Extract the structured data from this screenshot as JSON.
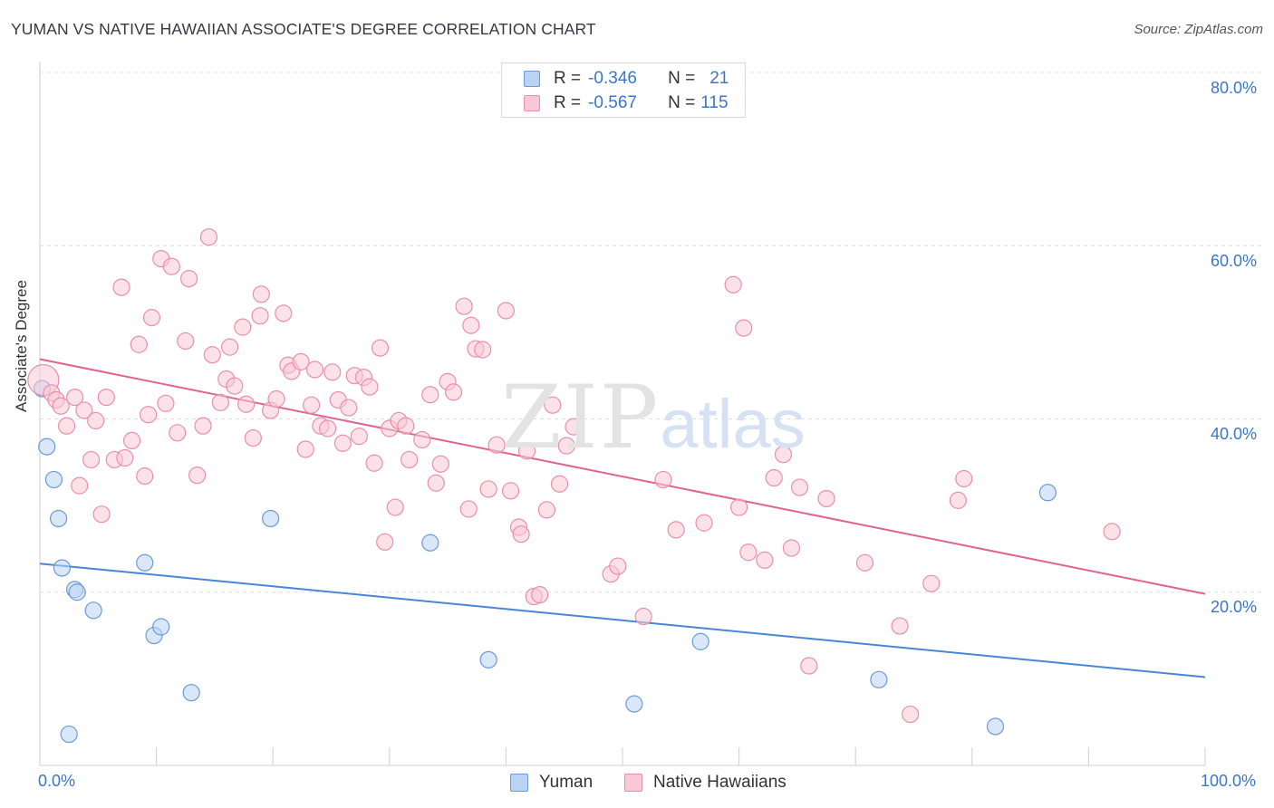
{
  "title": "YUMAN VS NATIVE HAWAIIAN ASSOCIATE'S DEGREE CORRELATION CHART",
  "source": "Source: ZipAtlas.com",
  "watermark": {
    "zip": "ZIP",
    "atlas": "atlas"
  },
  "legend": {
    "r_label": "R =",
    "n_label": "N =",
    "items": [
      {
        "name": "Yuman",
        "r": "-0.346",
        "n": "21",
        "fill": "#b9d3f3",
        "stroke": "#6a9bd8"
      },
      {
        "name": "Native Hawaiians",
        "r": "-0.567",
        "n": "115",
        "fill": "#f9c8d6",
        "stroke": "#e98fab"
      }
    ]
  },
  "chart_data": {
    "type": "scatter",
    "title": "YUMAN VS NATIVE HAWAIIAN ASSOCIATE'S DEGREE CORRELATION CHART",
    "xlabel": "",
    "ylabel": "Associate's Degree",
    "xlim": [
      0,
      100
    ],
    "ylim": [
      0,
      80
    ],
    "x_ticks": [
      "0.0%",
      "100.0%"
    ],
    "y_ticks": [
      "20.0%",
      "40.0%",
      "60.0%",
      "80.0%"
    ],
    "y_tick_values": [
      20,
      40,
      60,
      80
    ],
    "grid": true,
    "legend_position": "top-center",
    "series": [
      {
        "name": "Yuman",
        "color": "#4a86d6",
        "fill": "#b9d3f3",
        "trend": {
          "x": [
            0,
            100
          ],
          "y": [
            23.3,
            10.2
          ]
        },
        "points": [
          [
            0.2,
            43.5
          ],
          [
            0.6,
            36.8
          ],
          [
            1.2,
            33.0
          ],
          [
            1.6,
            28.5
          ],
          [
            1.9,
            22.8
          ],
          [
            3.0,
            20.3
          ],
          [
            3.2,
            20.0
          ],
          [
            4.6,
            17.9
          ],
          [
            9.0,
            23.4
          ],
          [
            9.8,
            15.0
          ],
          [
            10.4,
            16.0
          ],
          [
            13.0,
            8.4
          ],
          [
            19.8,
            28.5
          ],
          [
            33.5,
            25.7
          ],
          [
            38.5,
            12.2
          ],
          [
            51.0,
            7.1
          ],
          [
            56.7,
            14.3
          ],
          [
            72.0,
            9.9
          ],
          [
            82.0,
            4.5
          ],
          [
            86.5,
            31.5
          ],
          [
            2.5,
            3.6
          ]
        ]
      },
      {
        "name": "Native Hawaiians",
        "color": "#e0648f",
        "fill": "#f9c8d6",
        "trend": {
          "x": [
            0,
            100
          ],
          "y": [
            46.9,
            19.8
          ]
        },
        "points": [
          [
            0.3,
            44.5
          ],
          [
            1.0,
            43.0
          ],
          [
            1.4,
            42.2
          ],
          [
            1.8,
            41.5
          ],
          [
            2.3,
            39.2
          ],
          [
            3.0,
            42.5
          ],
          [
            3.4,
            32.3
          ],
          [
            3.8,
            41.0
          ],
          [
            4.4,
            35.3
          ],
          [
            4.8,
            39.8
          ],
          [
            5.3,
            29.0
          ],
          [
            5.7,
            42.5
          ],
          [
            6.4,
            35.3
          ],
          [
            7.0,
            55.2
          ],
          [
            7.3,
            35.5
          ],
          [
            7.9,
            37.5
          ],
          [
            8.5,
            48.6
          ],
          [
            9.0,
            33.4
          ],
          [
            9.3,
            40.5
          ],
          [
            9.6,
            51.7
          ],
          [
            10.4,
            58.5
          ],
          [
            10.8,
            41.8
          ],
          [
            11.3,
            57.6
          ],
          [
            11.8,
            38.4
          ],
          [
            12.5,
            49.0
          ],
          [
            12.8,
            56.2
          ],
          [
            13.5,
            33.5
          ],
          [
            14.0,
            39.2
          ],
          [
            14.5,
            61.0
          ],
          [
            14.8,
            47.4
          ],
          [
            15.5,
            41.9
          ],
          [
            16.0,
            44.6
          ],
          [
            16.3,
            48.3
          ],
          [
            16.7,
            43.8
          ],
          [
            17.4,
            50.6
          ],
          [
            17.7,
            41.7
          ],
          [
            18.3,
            37.8
          ],
          [
            18.9,
            51.9
          ],
          [
            19.0,
            54.4
          ],
          [
            19.8,
            41.0
          ],
          [
            20.3,
            42.3
          ],
          [
            20.9,
            52.2
          ],
          [
            21.3,
            46.2
          ],
          [
            21.6,
            45.5
          ],
          [
            22.4,
            46.6
          ],
          [
            22.8,
            36.5
          ],
          [
            23.3,
            41.6
          ],
          [
            23.6,
            45.7
          ],
          [
            24.1,
            39.2
          ],
          [
            24.7,
            38.9
          ],
          [
            25.1,
            45.4
          ],
          [
            25.6,
            42.2
          ],
          [
            26.0,
            37.2
          ],
          [
            26.5,
            41.3
          ],
          [
            27.0,
            45.0
          ],
          [
            27.4,
            38.0
          ],
          [
            27.8,
            44.8
          ],
          [
            28.3,
            43.7
          ],
          [
            28.7,
            34.9
          ],
          [
            29.2,
            48.2
          ],
          [
            29.6,
            25.8
          ],
          [
            30.0,
            38.9
          ],
          [
            30.5,
            29.8
          ],
          [
            30.8,
            39.8
          ],
          [
            31.4,
            39.2
          ],
          [
            31.7,
            35.3
          ],
          [
            32.8,
            37.6
          ],
          [
            33.5,
            42.8
          ],
          [
            34.0,
            32.6
          ],
          [
            34.4,
            34.8
          ],
          [
            35.0,
            44.3
          ],
          [
            35.5,
            43.1
          ],
          [
            36.4,
            53.0
          ],
          [
            36.8,
            29.6
          ],
          [
            37.0,
            50.8
          ],
          [
            37.4,
            48.1
          ],
          [
            38.0,
            48.0
          ],
          [
            38.5,
            31.9
          ],
          [
            39.2,
            37.0
          ],
          [
            40.0,
            52.5
          ],
          [
            40.4,
            31.7
          ],
          [
            41.1,
            27.5
          ],
          [
            41.3,
            26.7
          ],
          [
            41.8,
            36.3
          ],
          [
            42.4,
            19.5
          ],
          [
            42.9,
            19.7
          ],
          [
            43.5,
            29.5
          ],
          [
            44.0,
            41.6
          ],
          [
            44.6,
            32.5
          ],
          [
            45.2,
            36.9
          ],
          [
            45.8,
            39.1
          ],
          [
            49.0,
            22.1
          ],
          [
            49.6,
            23.0
          ],
          [
            51.8,
            17.2
          ],
          [
            53.5,
            33.0
          ],
          [
            54.6,
            27.2
          ],
          [
            57.0,
            28.0
          ],
          [
            59.5,
            55.5
          ],
          [
            60.0,
            29.8
          ],
          [
            60.4,
            50.5
          ],
          [
            60.8,
            24.6
          ],
          [
            62.2,
            23.7
          ],
          [
            63.0,
            33.2
          ],
          [
            63.8,
            35.9
          ],
          [
            64.5,
            25.1
          ],
          [
            65.2,
            32.1
          ],
          [
            66.0,
            11.5
          ],
          [
            67.5,
            30.8
          ],
          [
            70.8,
            23.4
          ],
          [
            73.8,
            16.1
          ],
          [
            74.7,
            5.9
          ],
          [
            76.5,
            21.0
          ],
          [
            78.8,
            30.6
          ],
          [
            79.3,
            33.1
          ],
          [
            92.0,
            27.0
          ]
        ]
      }
    ]
  }
}
